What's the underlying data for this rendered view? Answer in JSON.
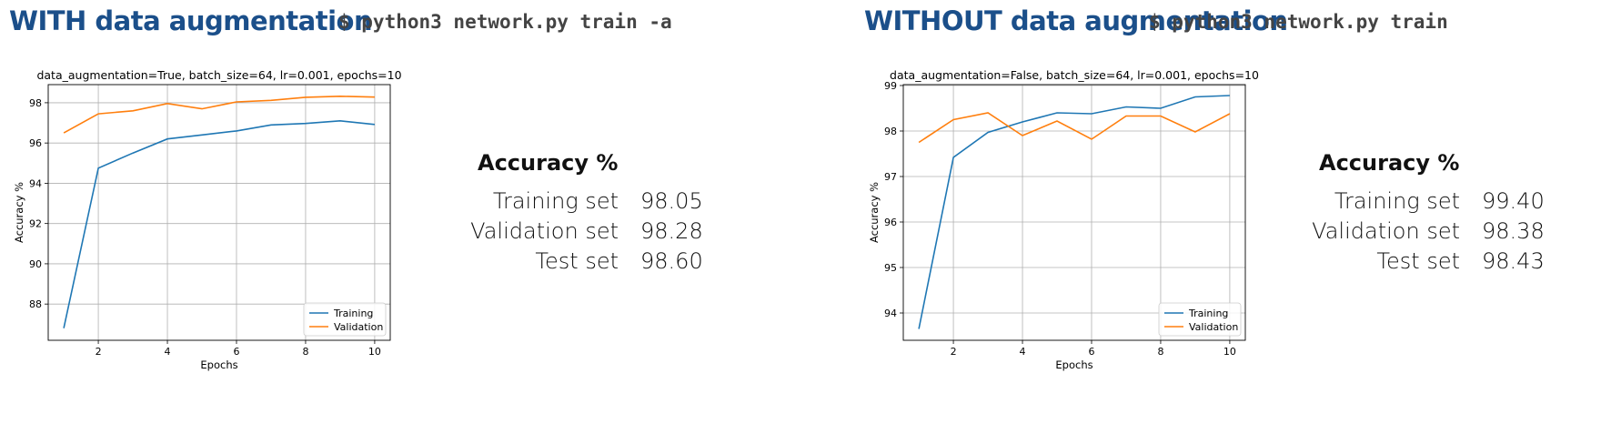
{
  "left": {
    "heading": "WITH data augmentation",
    "command": "$ python3 network.py train -a",
    "accuracy": {
      "title": "Accuracy %",
      "rows": [
        {
          "label": "Training set",
          "value": "98.05"
        },
        {
          "label": "Validation set",
          "value": "98.28"
        },
        {
          "label": "Test set",
          "value": "98.60"
        }
      ]
    }
  },
  "right": {
    "heading": "WITHOUT data augmentation",
    "command": "$ python3 network.py train",
    "accuracy": {
      "title": "Accuracy %",
      "rows": [
        {
          "label": "Training set",
          "value": "99.40"
        },
        {
          "label": "Validation set",
          "value": "98.38"
        },
        {
          "label": "Test set",
          "value": "98.43"
        }
      ]
    }
  },
  "colors": {
    "heading": "#1b4f8a",
    "training": "#1f77b4",
    "validation": "#ff7f0e"
  },
  "chart_data": [
    {
      "type": "line",
      "title": "data_augmentation=True, batch_size=64, lr=0.001, epochs=10",
      "xlabel": "Epochs",
      "ylabel": "Accuracy %",
      "x": [
        1,
        2,
        3,
        4,
        5,
        6,
        7,
        8,
        9,
        10
      ],
      "xticks": [
        2,
        4,
        6,
        8,
        10
      ],
      "yticks": [
        88,
        90,
        92,
        94,
        96,
        98
      ],
      "xlim": [
        0.55,
        10.45
      ],
      "ylim": [
        86.2,
        98.9
      ],
      "grid": true,
      "legend": "bottom-right",
      "series": [
        {
          "name": "Training",
          "color": "#1f77b4",
          "values": [
            86.8,
            94.75,
            95.5,
            96.2,
            96.4,
            96.6,
            96.9,
            96.97,
            97.1,
            96.92
          ]
        },
        {
          "name": "Validation",
          "color": "#ff7f0e",
          "values": [
            96.5,
            97.45,
            97.6,
            97.96,
            97.7,
            98.04,
            98.12,
            98.27,
            98.32,
            98.28
          ]
        }
      ]
    },
    {
      "type": "line",
      "title": "data_augmentation=False, batch_size=64, lr=0.001, epochs=10",
      "xlabel": "Epochs",
      "ylabel": "Accuracy %",
      "x": [
        1,
        2,
        3,
        4,
        5,
        6,
        7,
        8,
        9,
        10
      ],
      "xticks": [
        2,
        4,
        6,
        8,
        10
      ],
      "yticks": [
        94,
        95,
        96,
        97,
        98,
        99
      ],
      "xlim": [
        0.55,
        10.45
      ],
      "ylim": [
        93.4,
        99.02
      ],
      "grid": true,
      "legend": "bottom-right",
      "series": [
        {
          "name": "Training",
          "color": "#1f77b4",
          "values": [
            93.65,
            97.42,
            97.97,
            98.2,
            98.4,
            98.38,
            98.53,
            98.5,
            98.75,
            98.78
          ]
        },
        {
          "name": "Validation",
          "color": "#ff7f0e",
          "values": [
            97.75,
            98.25,
            98.4,
            97.9,
            98.22,
            97.82,
            98.33,
            98.33,
            97.98,
            98.38
          ]
        }
      ]
    }
  ]
}
